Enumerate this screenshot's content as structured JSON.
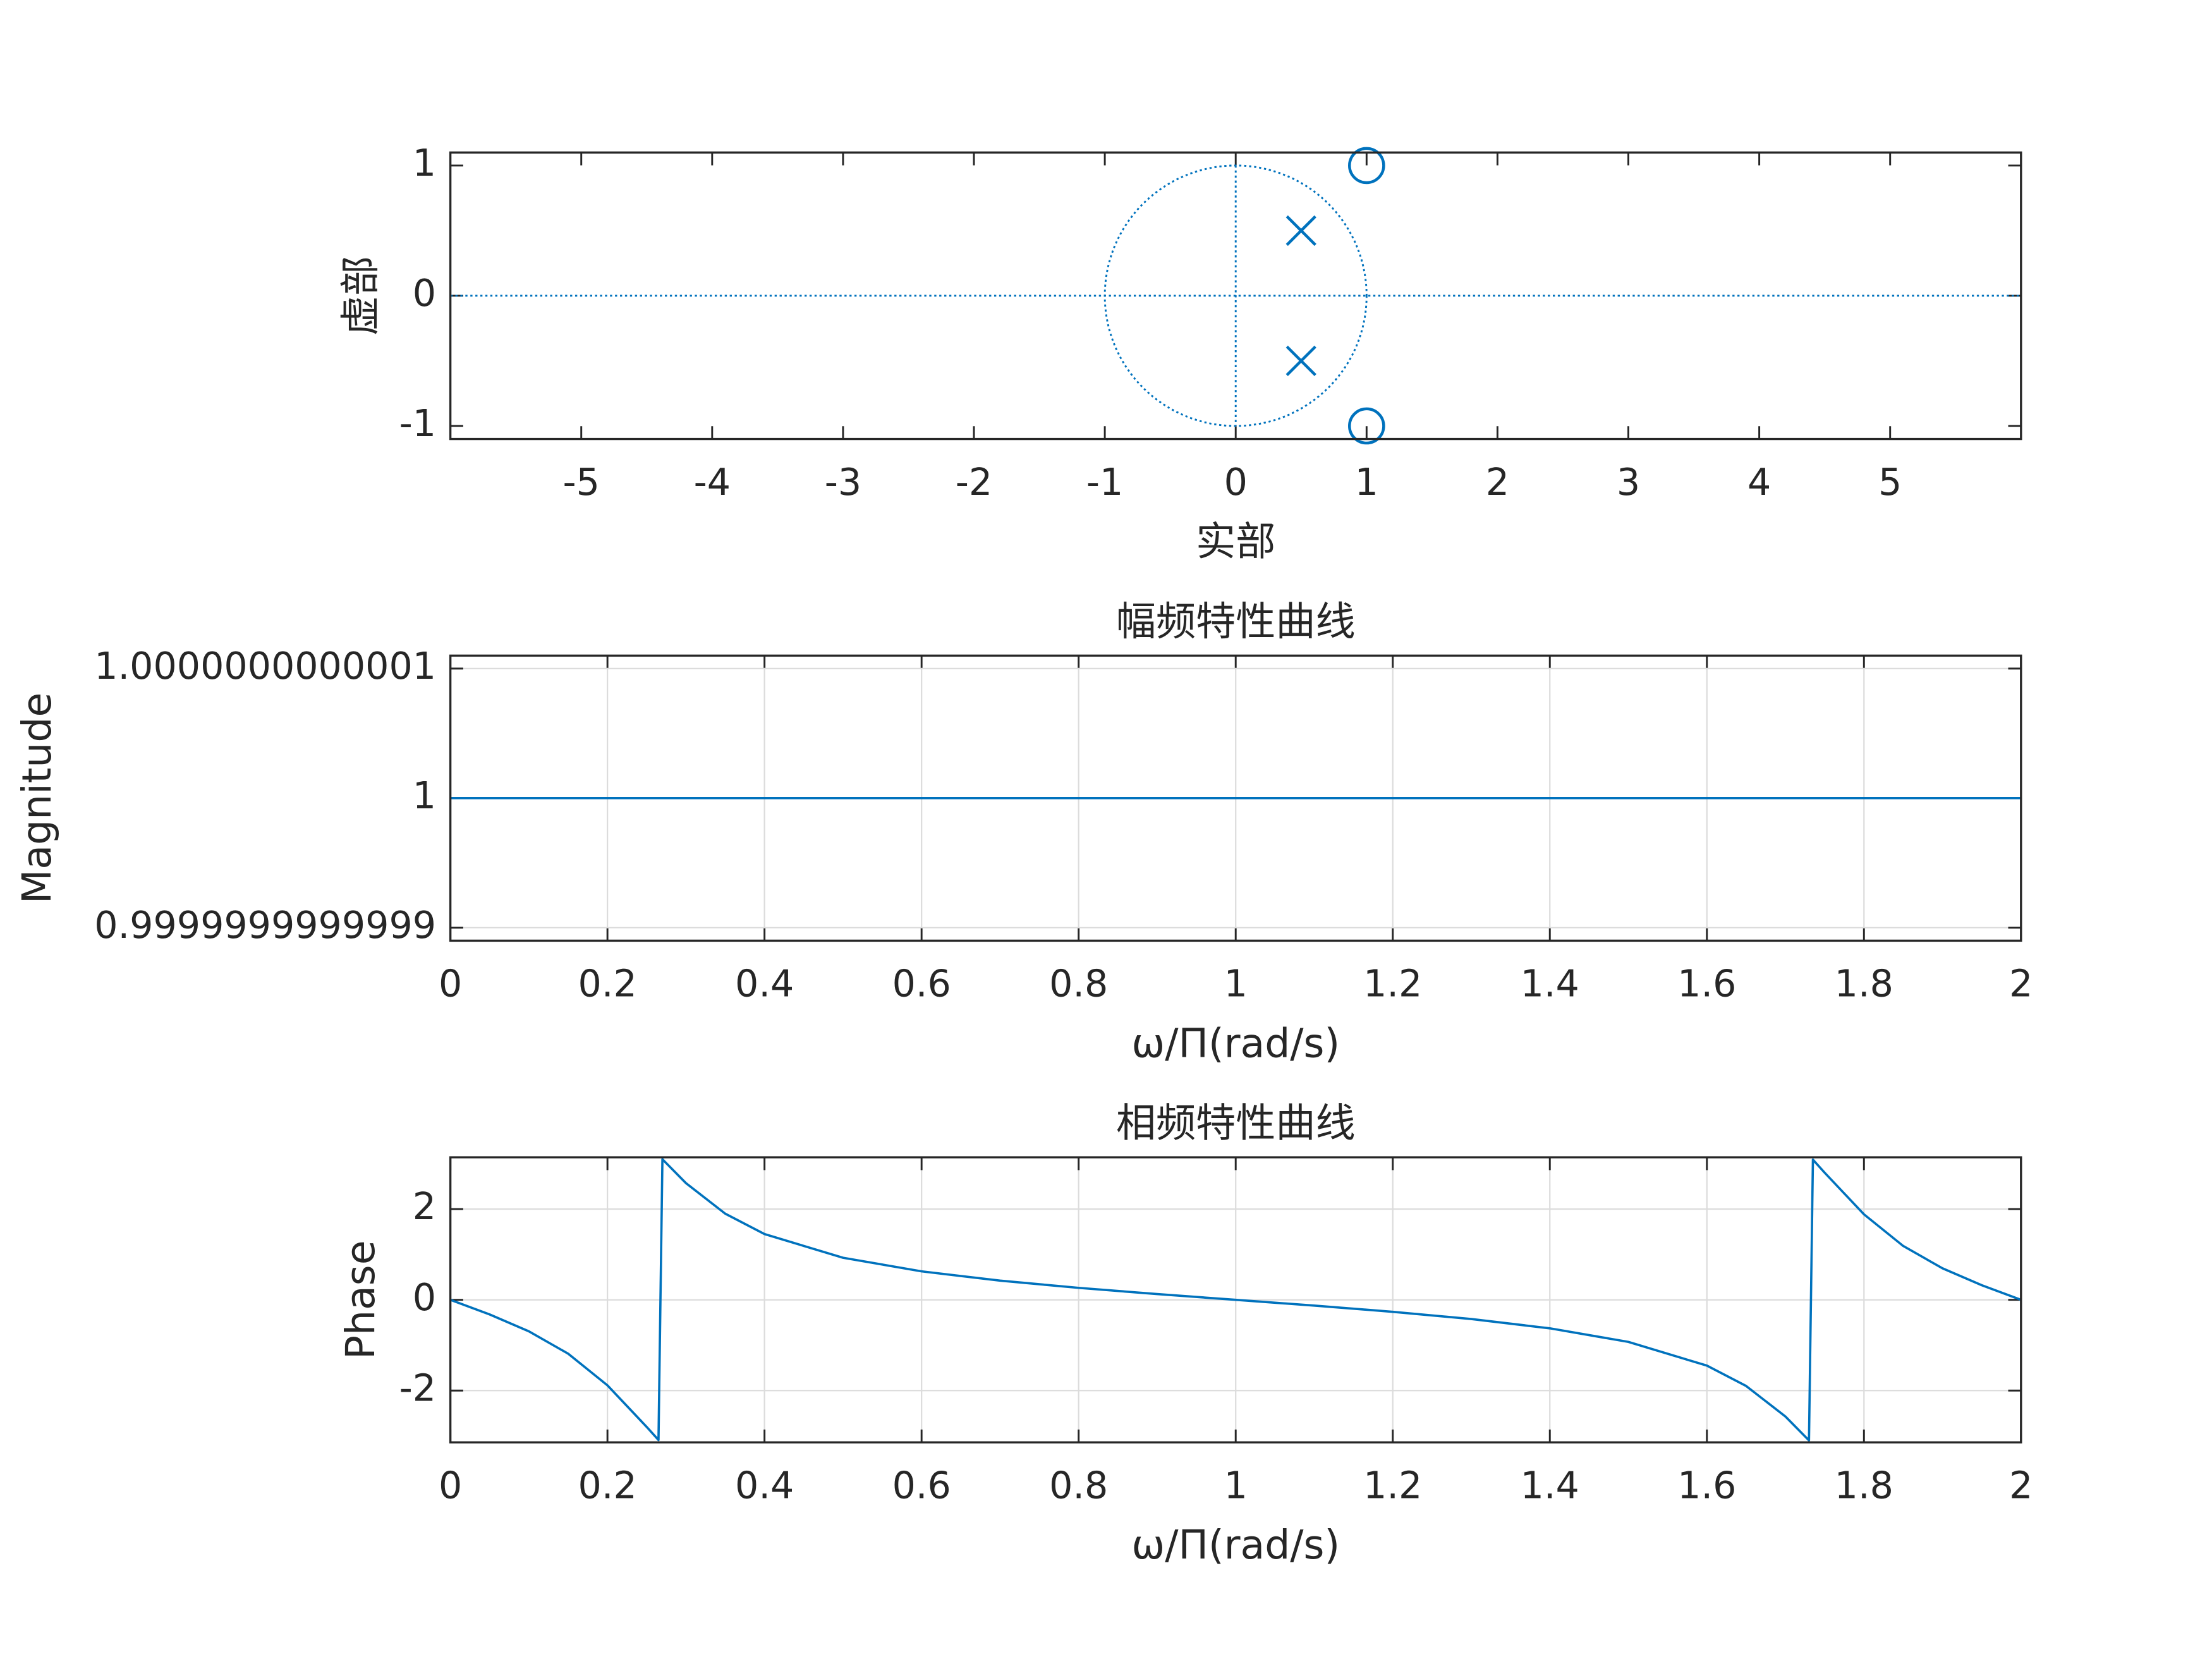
{
  "chart_data": [
    {
      "type": "scatter",
      "xlabel": "实部",
      "ylabel": "虚部",
      "xlim": [
        -6,
        6
      ],
      "xticks": [
        -5,
        -4,
        -3,
        -2,
        -1,
        0,
        1,
        2,
        3,
        4,
        5
      ],
      "ylim": [
        -1.1,
        1.1
      ],
      "yticks": [
        -1,
        0,
        1
      ],
      "grid": false,
      "unit_circle": {
        "center": [
          0,
          0
        ],
        "radius": 1,
        "color": "#0072bd"
      },
      "series": [
        {
          "marker": "o",
          "color": "#0072bd",
          "x": [
            1,
            1
          ],
          "values": [
            1,
            -1
          ]
        },
        {
          "marker": "x",
          "color": "#0072bd",
          "x": [
            0.5,
            0.5
          ],
          "values": [
            0.5,
            -0.5
          ]
        }
      ]
    },
    {
      "type": "line",
      "title": "幅频特性曲线",
      "xlabel": "ω/Π(rad/s)",
      "ylabel": "Magnitude",
      "xlim": [
        0,
        2
      ],
      "xticks": [
        0,
        0.2,
        0.4,
        0.6,
        0.8,
        1,
        1.2,
        1.4,
        1.6,
        1.8,
        2
      ],
      "ylim": [
        0.99999999999989,
        1.00000000000011
      ],
      "yticks": [
        0.9999999999999,
        1,
        1.0000000000001
      ],
      "grid": true,
      "series": [
        {
          "color": "#0072bd",
          "x": [
            0,
            0.1,
            0.2,
            0.3,
            0.4,
            0.5,
            0.6,
            0.7,
            0.8,
            0.9,
            1,
            1.1,
            1.2,
            1.3,
            1.4,
            1.5,
            1.6,
            1.7,
            1.8,
            1.9,
            2
          ],
          "values": [
            1,
            1,
            1,
            1,
            1,
            1,
            1,
            1,
            1,
            1,
            1,
            1,
            1,
            1,
            1,
            1,
            1,
            1,
            1,
            1,
            1
          ]
        }
      ]
    },
    {
      "type": "line",
      "title": "相频特性曲线",
      "xlabel": "ω/Π(rad/s)",
      "ylabel": "Phase",
      "xlim": [
        0,
        2
      ],
      "xticks": [
        0,
        0.2,
        0.4,
        0.6,
        0.8,
        1,
        1.2,
        1.4,
        1.6,
        1.8,
        2
      ],
      "ylim": [
        -3.1416,
        3.1416
      ],
      "yticks": [
        -2,
        0,
        2
      ],
      "grid": true,
      "series": [
        {
          "color": "#0072bd",
          "x": [
            0,
            0.05,
            0.1,
            0.15,
            0.2,
            0.25,
            0.265,
            0.27,
            0.3,
            0.35,
            0.4,
            0.5,
            0.6,
            0.7,
            0.8,
            0.9,
            1,
            1.1,
            1.2,
            1.3,
            1.4,
            1.5,
            1.6,
            1.65,
            1.7,
            1.73,
            1.735,
            1.75,
            1.8,
            1.85,
            1.9,
            1.95,
            2
          ],
          "values": [
            0,
            -0.322,
            -0.695,
            -1.187,
            -1.885,
            -2.802,
            -3.09,
            3.099,
            2.572,
            1.899,
            1.45,
            0.927,
            0.628,
            0.423,
            0.264,
            0.127,
            0,
            -0.127,
            -0.264,
            -0.423,
            -0.628,
            -0.927,
            -1.45,
            -1.899,
            -2.572,
            -3.099,
            3.09,
            2.802,
            1.885,
            1.187,
            0.695,
            0.322,
            0
          ]
        }
      ]
    }
  ]
}
